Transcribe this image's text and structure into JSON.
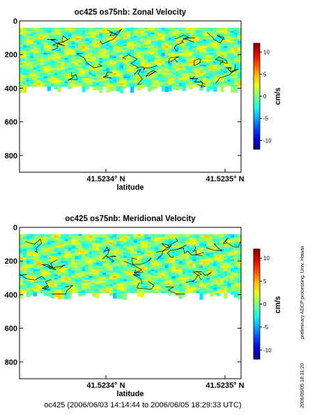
{
  "side_note": "preliminary ADCP processing,   Univ. Hawaii",
  "timestamp": "2006/06/05 18:31:20",
  "footer": "oc425 (2006/06/03 14:14:44 to 2006/06/05 18:29:33 UTC)",
  "colors": {
    "low": "#00008f",
    "mid": "#19ffe6",
    "high": "#8f0000"
  },
  "chart_data": [
    {
      "type": "heatmap",
      "title": "oc425 os75nb: Zonal Velocity",
      "xlabel": "latitude",
      "x_ticks": [
        "41.5234° N",
        "41.5235° N"
      ],
      "y_ticks": [
        0,
        200,
        400,
        600,
        800
      ],
      "ylim": [
        900,
        0
      ],
      "y_reversed": true,
      "data_depth_range": [
        40,
        400
      ],
      "colorbar": {
        "label": "cm/s",
        "range": [
          -12,
          12
        ],
        "ticks": [
          10,
          5,
          0,
          -5,
          -10
        ]
      }
    },
    {
      "type": "heatmap",
      "title": "oc425 os75nb: Meridional Velocity",
      "xlabel": "latitude",
      "x_ticks": [
        "41.5234° N",
        "41.5235° N"
      ],
      "y_ticks": [
        0,
        200,
        400,
        600,
        800
      ],
      "ylim": [
        900,
        0
      ],
      "y_reversed": true,
      "data_depth_range": [
        40,
        400
      ],
      "colorbar": {
        "label": "cm/s",
        "range": [
          -12,
          12
        ],
        "ticks": [
          10,
          5,
          0,
          -5,
          -10
        ]
      }
    }
  ]
}
